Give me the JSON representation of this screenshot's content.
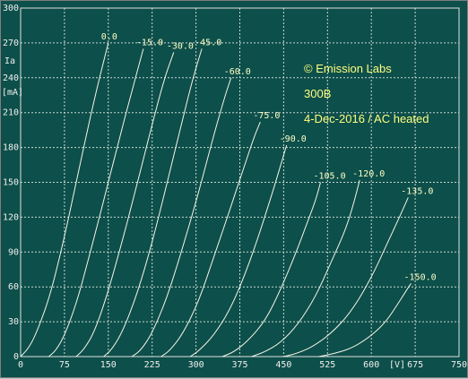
{
  "chart_data": {
    "type": "line",
    "xlabel": "[V]",
    "ylabel": "Ia\n[mA]",
    "xlim": [
      0,
      750
    ],
    "ylim": [
      0,
      300
    ],
    "x_ticks": [
      0,
      75,
      150,
      225,
      300,
      375,
      450,
      525,
      600,
      675,
      750
    ],
    "y_ticks": [
      0,
      30,
      60,
      90,
      120,
      150,
      180,
      210,
      240,
      270,
      300
    ],
    "grid": true,
    "annotations": [
      "© Emission Labs",
      "300B",
      "4-Dec-2016 / AC heated"
    ],
    "series": [
      {
        "name": "0.0",
        "x": [
          0,
          15,
          30,
          50,
          70,
          90,
          110,
          130,
          150
        ],
        "y": [
          0,
          8,
          24,
          52,
          92,
          138,
          185,
          230,
          270
        ]
      },
      {
        "name": "-15.0",
        "x": [
          48,
          60,
          75,
          95,
          115,
          140,
          165,
          190,
          210
        ],
        "y": [
          0,
          5,
          18,
          45,
          82,
          130,
          180,
          228,
          265
        ]
      },
      {
        "name": "-30.0",
        "x": [
          95,
          108,
          125,
          145,
          170,
          195,
          220,
          245,
          262
        ],
        "y": [
          0,
          6,
          20,
          48,
          92,
          140,
          190,
          238,
          262
        ]
      },
      {
        "name": "-45.0",
        "x": [
          142,
          156,
          175,
          200,
          225,
          250,
          275,
          295,
          310
        ],
        "y": [
          0,
          6,
          22,
          55,
          98,
          148,
          200,
          240,
          265
        ]
      },
      {
        "name": "-60.0",
        "x": [
          190,
          205,
          225,
          250,
          275,
          305,
          330,
          350,
          360
        ],
        "y": [
          0,
          5,
          20,
          50,
          90,
          142,
          190,
          225,
          240
        ]
      },
      {
        "name": "-75.0",
        "x": [
          240,
          255,
          278,
          305,
          330,
          355,
          380,
          400,
          410
        ],
        "y": [
          0,
          5,
          20,
          48,
          85,
          122,
          160,
          190,
          202
        ]
      },
      {
        "name": "-90.0",
        "x": [
          290,
          305,
          330,
          358,
          385,
          410,
          430,
          445,
          455
        ],
        "y": [
          0,
          5,
          18,
          40,
          72,
          108,
          140,
          165,
          182
        ]
      },
      {
        "name": "-105.0",
        "x": [
          345,
          365,
          390,
          420,
          445,
          470,
          490,
          505,
          513
        ],
        "y": [
          0,
          4,
          14,
          32,
          58,
          88,
          115,
          135,
          150
        ]
      },
      {
        "name": "-120.0",
        "x": [
          395,
          418,
          445,
          475,
          505,
          530,
          555,
          570,
          580
        ],
        "y": [
          0,
          4,
          12,
          28,
          52,
          80,
          108,
          132,
          152
        ]
      },
      {
        "name": "-135.0",
        "x": [
          450,
          475,
          505,
          540,
          570,
          600,
          625,
          648,
          663
        ],
        "y": [
          0,
          3,
          10,
          24,
          42,
          68,
          95,
          120,
          137
        ]
      },
      {
        "name": "-150.0",
        "x": [
          510,
          540,
          570,
          600,
          625,
          645,
          660,
          668
        ],
        "y": [
          0,
          3,
          8,
          18,
          30,
          45,
          57,
          63
        ]
      }
    ],
    "labels": [
      "0.0",
      "-15.0",
      "-30.0",
      "-45.0",
      "-60.0",
      "-75.0",
      "-90.0",
      "-105.0",
      "-120.0",
      "-135.0",
      "-150.0"
    ]
  }
}
